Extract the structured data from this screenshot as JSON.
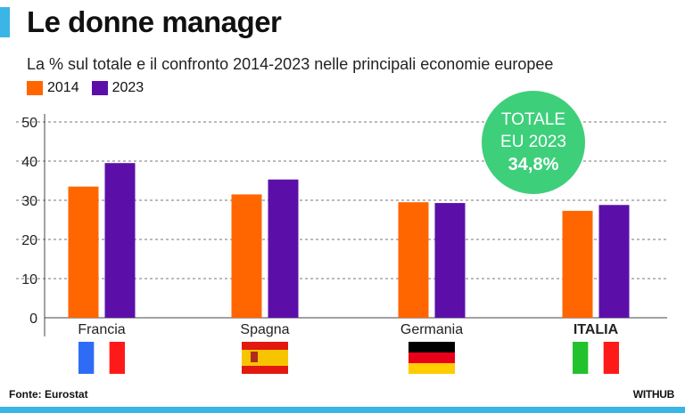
{
  "header": {
    "title": "Le donne manager",
    "subtitle": "La % sul totale e il confronto 2014-2023 nelle principali economie europee"
  },
  "badge": {
    "line1": "TOTALE",
    "line2": "EU 2023",
    "value": "34,8%",
    "color": "#3ecf7b"
  },
  "footer": {
    "source": "Fonte: Eurostat",
    "brand": "WITHUB"
  },
  "colors": {
    "accent": "#3ab5e6",
    "series_2014": "#ff6600",
    "series_2023": "#5c0fa8"
  },
  "chart_data": {
    "type": "bar",
    "categories": [
      "Francia",
      "Spagna",
      "Germania",
      "ITALIA"
    ],
    "category_icons": [
      "france-flag-icon",
      "spain-flag-icon",
      "germany-flag-icon",
      "italy-flag-icon"
    ],
    "series": [
      {
        "name": "2014",
        "values": [
          33.5,
          31.5,
          29.5,
          27.3
        ]
      },
      {
        "name": "2023",
        "values": [
          39.5,
          35.3,
          29.3,
          28.8
        ]
      }
    ],
    "ylim": [
      0,
      50
    ],
    "yticks": [
      0,
      10,
      20,
      30,
      40,
      50
    ],
    "grid": true,
    "legend": "top-left"
  }
}
